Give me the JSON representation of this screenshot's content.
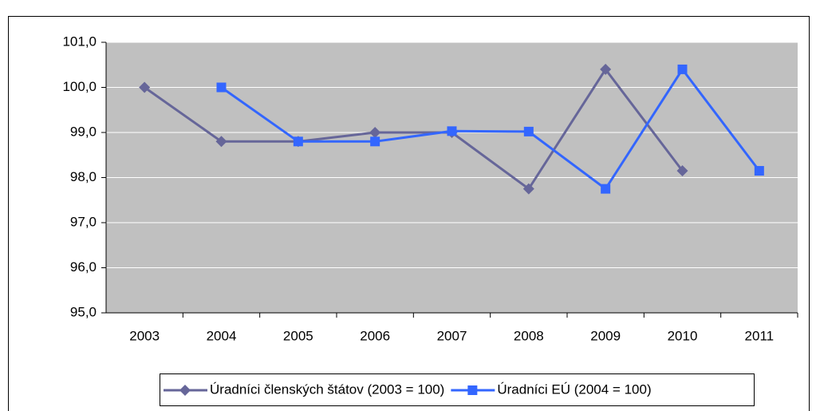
{
  "chart_data": {
    "type": "line",
    "categories": [
      "2003",
      "2004",
      "2005",
      "2006",
      "2007",
      "2008",
      "2009",
      "2010",
      "2011"
    ],
    "series": [
      {
        "name": "Úradníci členských štátov (2003 = 100)",
        "color": "#666699",
        "marker": "diamond",
        "values": [
          100.0,
          98.8,
          98.8,
          99.0,
          99.0,
          97.75,
          100.4,
          98.15,
          null
        ]
      },
      {
        "name": "Úradníci EÚ (2004 = 100)",
        "color": "#3366ff",
        "marker": "square",
        "values": [
          null,
          100.0,
          98.8,
          98.8,
          99.03,
          99.02,
          97.75,
          100.4,
          98.15
        ]
      }
    ],
    "ylim": [
      95,
      101
    ],
    "yticks": [
      {
        "value": 95,
        "label": "95,0"
      },
      {
        "value": 96,
        "label": "96,0"
      },
      {
        "value": 97,
        "label": "97,0"
      },
      {
        "value": 98,
        "label": "98,0"
      },
      {
        "value": 99,
        "label": "99,0"
      },
      {
        "value": 100,
        "label": "100,0"
      },
      {
        "value": 101,
        "label": "101,0"
      }
    ],
    "grid": true,
    "plot_background": "#c0c0c0",
    "legend": "bottom"
  }
}
